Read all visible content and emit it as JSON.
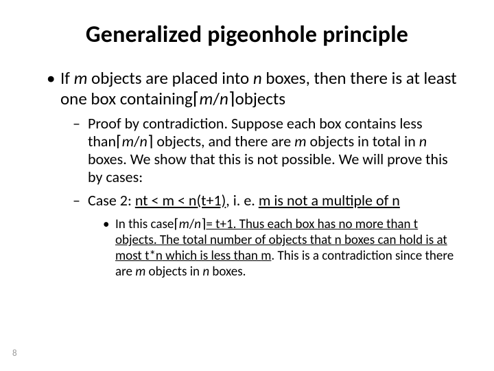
{
  "slide": {
    "title": "Generalized pigeonhole principle",
    "page_number": "8",
    "colors": {
      "text": "#000000",
      "page_num": "#9a9a9a",
      "background": "#ffffff"
    },
    "fonts": {
      "title_size_pt": 34,
      "l1_size_pt": 25,
      "l2_size_pt": 22,
      "l3_size_pt": 19
    },
    "glyphs": {
      "ceil_left": "⌈",
      "ceil_right": "⌉",
      "bullet": "•",
      "dash": "–"
    },
    "l1": {
      "pre": "If ",
      "m1": "m",
      "mid1": " objects are placed into ",
      "n1": "n",
      "mid2": " boxes, then there is at least one box containing",
      "expr_m": "m",
      "slash": "/",
      "expr_n": "n",
      "post": "objects"
    },
    "l2a": {
      "pre": "Proof by contradiction. Suppose each box contains less than",
      "expr_m": "m",
      "slash": "/",
      "expr_n": "n",
      "mid": " objects, and there are ",
      "m2": "m",
      "mid2": " objects in total in ",
      "n2": "n",
      "post": " boxes. We show that this is not possible.  We will prove this by cases:"
    },
    "l2b": {
      "pre": "Case 2: ",
      "ineq": "nt < m < n(t+1)",
      "mid": ", i. e. ",
      "m": "m",
      "mid2": " is not a multiple of ",
      "n": "n"
    },
    "l3": {
      "pre": "In this case",
      "expr_m": "m",
      "slash": "/",
      "expr_n": "n",
      "eq": "= t+1. Thus each box has no more than t objects. The total number of objects that ",
      "n": "n",
      "mid2": " boxes can hold is at most ",
      "tn": "t*n",
      "mid3": " which is less than ",
      "m": "m",
      "mid4": ". This is a contradiction since there are ",
      "m2": "m",
      "mid5": " objects in ",
      "n2": "n",
      "post": " boxes."
    }
  }
}
